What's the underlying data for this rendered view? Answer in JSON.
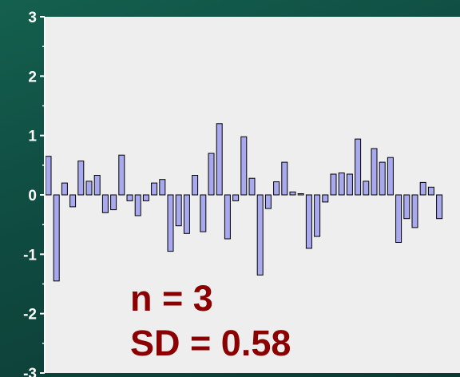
{
  "chart_data": {
    "type": "bar",
    "title": "",
    "xlabel": "",
    "ylabel": "",
    "ylim": [
      -3,
      3
    ],
    "y_ticks": [
      "3",
      "2",
      "1",
      "0",
      "-1",
      "-2",
      "-3"
    ],
    "grid": false,
    "values": [
      0.65,
      -1.45,
      0.2,
      -0.2,
      0.57,
      0.23,
      0.33,
      -0.3,
      -0.25,
      0.67,
      -0.1,
      -0.35,
      -0.1,
      0.2,
      0.26,
      -0.95,
      -0.52,
      -0.65,
      0.33,
      -0.62,
      0.7,
      1.2,
      -0.74,
      -0.1,
      0.98,
      0.28,
      -1.35,
      -0.23,
      0.22,
      0.55,
      0.05,
      0.02,
      -0.9,
      -0.7,
      -0.12,
      0.35,
      0.37,
      0.35,
      0.94,
      0.23,
      0.78,
      0.55,
      0.63,
      -0.8,
      -0.4,
      -0.55,
      0.21,
      0.13,
      -0.4
    ],
    "annotations": [
      "n = 3",
      "SD = 0.58"
    ],
    "colors": {
      "bar_fill": "#a9a9f0",
      "bar_stroke": "#000000",
      "plot_bg": "#eeeeee",
      "annotation": "#8b0000"
    }
  }
}
